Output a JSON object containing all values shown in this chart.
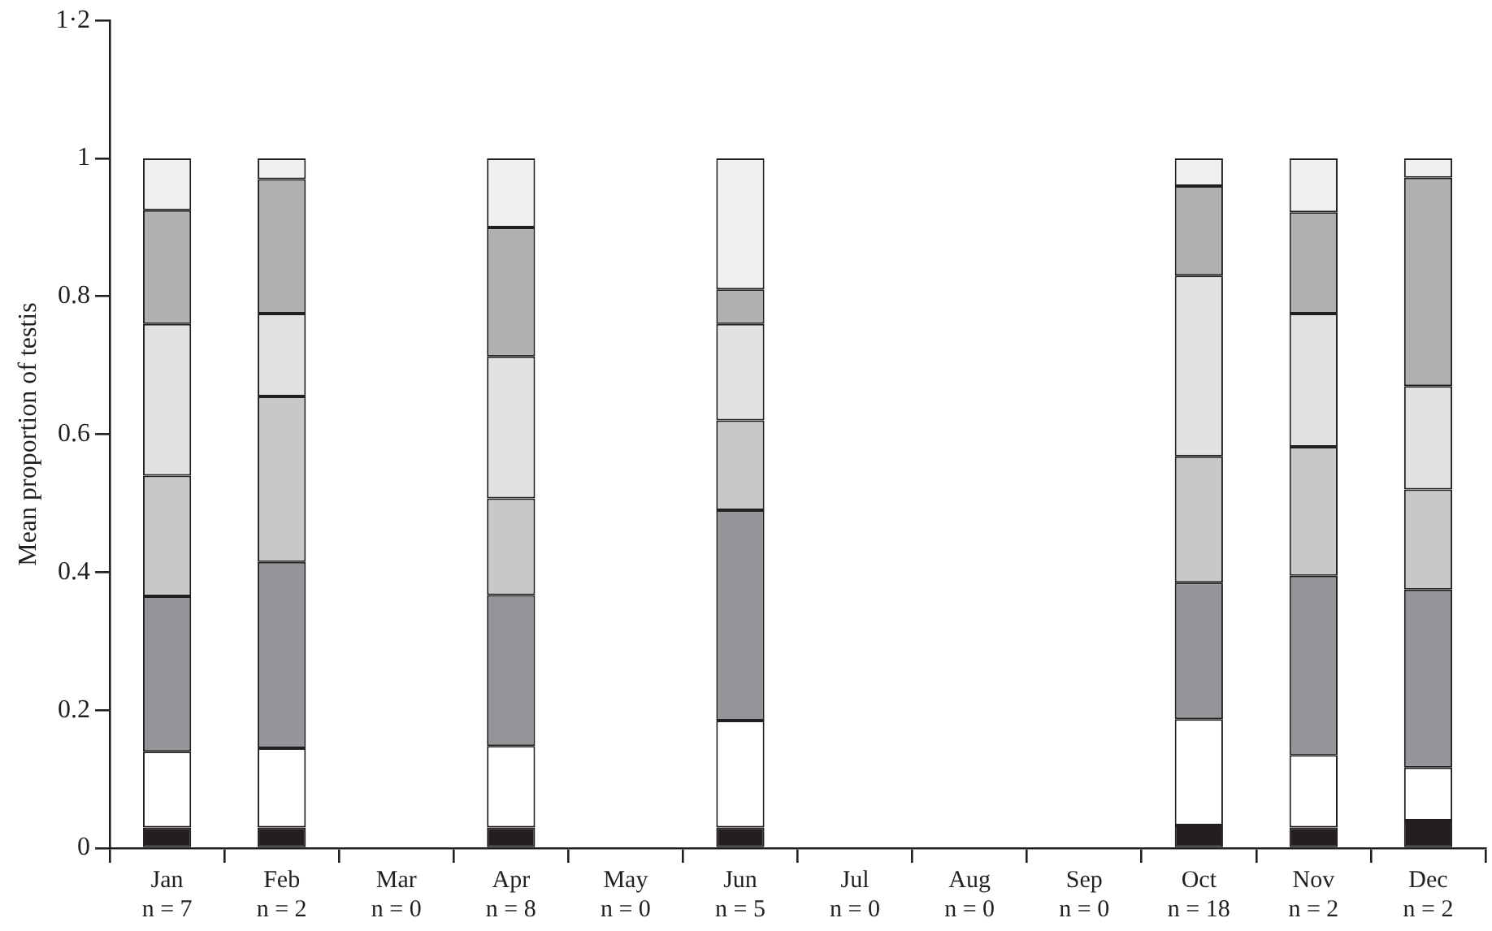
{
  "chart_data": {
    "type": "bar",
    "stacked": true,
    "ylabel": "Mean proportion of testis",
    "categories": [
      "Jan\nn = 7",
      "Feb\nn = 2",
      "Mar\nn = 0",
      "Apr\nn = 8",
      "May\nn = 0",
      "Jun\nn = 5",
      "Jul\nn = 0",
      "Aug\nn = 0",
      "Sep\nn = 0",
      "Oct\nn = 18",
      "Nov\nn = 2",
      "Dec\nn = 2"
    ],
    "series": [
      {
        "color": "#231f20",
        "values": [
          0.03,
          0.03,
          null,
          0.03,
          null,
          0.03,
          null,
          null,
          null,
          0.033,
          0.03,
          0.04
        ]
      },
      {
        "color": "#ffffff",
        "values": [
          0.11,
          0.115,
          null,
          0.118,
          null,
          0.155,
          null,
          null,
          null,
          0.154,
          0.105,
          0.077
        ]
      },
      {
        "color": "#939598",
        "values": [
          0.225,
          0.27,
          null,
          0.219,
          null,
          0.305,
          null,
          null,
          null,
          0.198,
          0.26,
          0.258
        ]
      },
      {
        "color": "#c8c8c8",
        "values": [
          0.175,
          0.24,
          null,
          0.14,
          null,
          0.13,
          null,
          null,
          null,
          0.183,
          0.187,
          0.145
        ]
      },
      {
        "color": "#e2e2e2",
        "values": [
          0.22,
          0.12,
          null,
          0.206,
          null,
          0.14,
          null,
          null,
          null,
          0.262,
          0.193,
          0.15
        ]
      },
      {
        "color": "#b0b0b0",
        "values": [
          0.165,
          0.195,
          null,
          0.187,
          null,
          0.05,
          null,
          null,
          null,
          0.13,
          0.147,
          0.302
        ]
      },
      {
        "color": "#f0f0f0",
        "values": [
          0.075,
          0.03,
          null,
          0.1,
          null,
          0.19,
          null,
          null,
          null,
          0.04,
          0.078,
          0.028
        ]
      }
    ],
    "ylim": [
      0,
      1.2
    ],
    "yticks": [
      0,
      0.2,
      0.4,
      0.6,
      0.8,
      1,
      {
        "value": 1.2,
        "label": "1·2"
      }
    ],
    "grid": false,
    "legend": false
  }
}
